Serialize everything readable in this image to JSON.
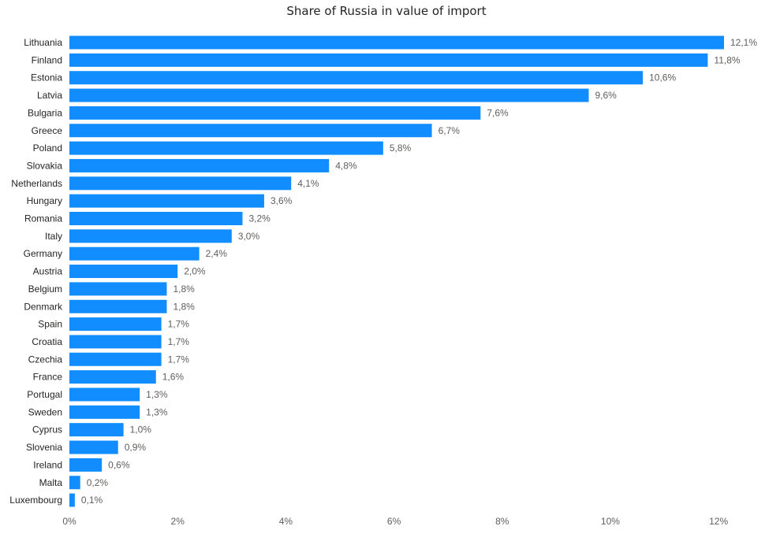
{
  "chart_data": {
    "type": "bar",
    "orientation": "horizontal",
    "title": "Share of Russia in value of import",
    "xlabel": "",
    "ylabel": "",
    "categories": [
      "Lithuania",
      "Finland",
      "Estonia",
      "Latvia",
      "Bulgaria",
      "Greece",
      "Poland",
      "Slovakia",
      "Netherlands",
      "Hungary",
      "Romania",
      "Italy",
      "Germany",
      "Austria",
      "Belgium",
      "Denmark",
      "Spain",
      "Croatia",
      "Czechia",
      "France",
      "Portugal",
      "Sweden",
      "Cyprus",
      "Slovenia",
      "Ireland",
      "Malta",
      "Luxembourg"
    ],
    "values": [
      12.1,
      11.8,
      10.6,
      9.6,
      7.6,
      6.7,
      5.8,
      4.8,
      4.1,
      3.6,
      3.2,
      3.0,
      2.4,
      2.0,
      1.8,
      1.8,
      1.7,
      1.7,
      1.7,
      1.6,
      1.3,
      1.3,
      1.0,
      0.9,
      0.6,
      0.2,
      0.1
    ],
    "value_labels": [
      "12,1%",
      "11,8%",
      "10,6%",
      "9,6%",
      "7,6%",
      "6,7%",
      "5,8%",
      "4,8%",
      "4,1%",
      "3,6%",
      "3,2%",
      "3,0%",
      "2,4%",
      "2,0%",
      "1,8%",
      "1,8%",
      "1,7%",
      "1,7%",
      "1,7%",
      "1,6%",
      "1,3%",
      "1,3%",
      "1,0%",
      "0,9%",
      "0,6%",
      "0,2%",
      "0,1%"
    ],
    "x_ticks": [
      0,
      2,
      4,
      6,
      8,
      10,
      12
    ],
    "x_tick_labels": [
      "0%",
      "2%",
      "4%",
      "6%",
      "8%",
      "10%",
      "12%"
    ],
    "xlim": [
      0,
      12.1
    ],
    "grid": false,
    "legend": "none",
    "bar_color": "#118DFF"
  }
}
